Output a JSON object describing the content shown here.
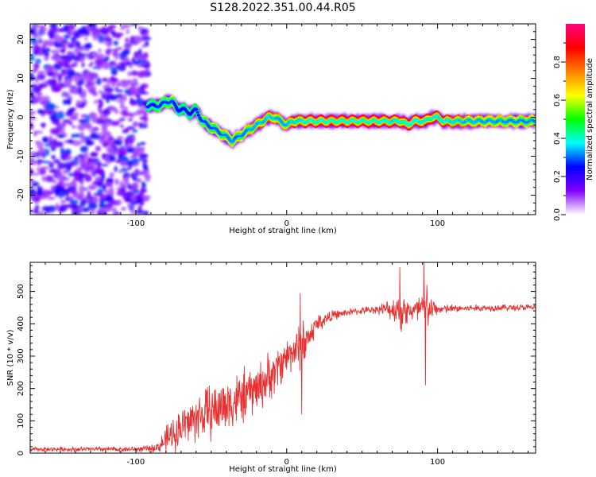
{
  "title": "S128.2022.351.00.44.R05",
  "chart_data": [
    {
      "type": "heatmap",
      "xlabel": "Height of straight line (km)",
      "ylabel": "Frequency (Hz)",
      "xlim": [
        -170,
        165
      ],
      "ylim": [
        -25,
        24
      ],
      "xticks": [
        -100,
        0,
        100
      ],
      "yticks": [
        -20,
        -10,
        0,
        10,
        20
      ],
      "colorbar": {
        "label": "Normalized spectral amplitude",
        "range": [
          0,
          1
        ],
        "ticks": [
          0.0,
          0.2,
          0.4,
          0.6,
          0.8
        ],
        "tick_labels": [
          "0.0",
          "0.2",
          "0.4",
          "0.6",
          "0.8"
        ],
        "colormap": [
          "#ffffff",
          "#8000ff",
          "#0000ff",
          "#00ffff",
          "#00ff00",
          "#ffff00",
          "#ff8000",
          "#ff0000",
          "#ff0080"
        ]
      },
      "ridge": {
        "description_x": [
          -92,
          -88,
          -84,
          -80,
          -76,
          -72,
          -68,
          -64,
          -60,
          -56,
          -52,
          -48,
          -44,
          -40,
          -36,
          -32,
          -28,
          -24,
          -20,
          -16,
          -12,
          -8,
          -4,
          0,
          4,
          8,
          12,
          20,
          40,
          60,
          70,
          76,
          80,
          84,
          88,
          92,
          96,
          100,
          104,
          110,
          130,
          150,
          165
        ],
        "frequency_hz": [
          3,
          3,
          3,
          4,
          4,
          2,
          2,
          1,
          2,
          -1,
          -2,
          -3,
          -4,
          -5,
          -6,
          -5,
          -4,
          -3,
          -2,
          -1,
          0,
          0,
          -1,
          -2,
          -1,
          -1,
          -1,
          -1,
          -1,
          -1,
          -1,
          -1,
          -2,
          -1,
          -1,
          -1,
          0,
          0,
          -1,
          -1,
          -1,
          -1,
          -1
        ],
        "amplitude": [
          0.5,
          0.5,
          0.55,
          0.55,
          0.6,
          0.45,
          0.5,
          0.5,
          0.5,
          0.55,
          0.6,
          0.6,
          0.65,
          0.7,
          0.7,
          0.65,
          0.7,
          0.75,
          0.8,
          0.8,
          0.85,
          0.8,
          0.75,
          0.8,
          0.85,
          0.85,
          0.9,
          0.95,
          0.95,
          0.95,
          0.9,
          0.9,
          0.95,
          0.9,
          0.9,
          0.9,
          0.95,
          0.9,
          0.9,
          0.85,
          0.75,
          0.7,
          0.7
        ]
      },
      "noise_region_x": [
        -170,
        -92
      ]
    },
    {
      "type": "line",
      "xlabel": "Height of straight line (km)",
      "ylabel": "SNR (10 * v/v)",
      "xlim": [
        -170,
        165
      ],
      "ylim": [
        0,
        590
      ],
      "xticks": [
        -100,
        0,
        100
      ],
      "yticks": [
        0,
        100,
        200,
        300,
        400,
        500
      ],
      "color": "#e83030",
      "envelope_x": [
        -170,
        -100,
        -90,
        -85,
        -80,
        -70,
        -60,
        -50,
        -40,
        -30,
        -20,
        -10,
        -5,
        0,
        5,
        10,
        15,
        20,
        30,
        40,
        50,
        60,
        70,
        75,
        80,
        85,
        90,
        95,
        100,
        120,
        140,
        165
      ],
      "envelope_mean": [
        12,
        12,
        14,
        20,
        40,
        80,
        110,
        130,
        150,
        170,
        200,
        240,
        270,
        300,
        320,
        330,
        360,
        400,
        425,
        435,
        440,
        445,
        445,
        445,
        440,
        440,
        440,
        445,
        445,
        448,
        450,
        450
      ],
      "envelope_amplitude": [
        6,
        8,
        10,
        15,
        40,
        60,
        70,
        80,
        80,
        80,
        70,
        70,
        60,
        60,
        50,
        80,
        40,
        30,
        15,
        10,
        10,
        12,
        30,
        60,
        40,
        30,
        80,
        40,
        15,
        10,
        10,
        10
      ],
      "spikes": [
        {
          "x": 9,
          "y": 495
        },
        {
          "x": 10,
          "y": 120
        },
        {
          "x": 11,
          "y": 410
        },
        {
          "x": 75,
          "y": 575
        },
        {
          "x": 76,
          "y": 375
        },
        {
          "x": 91,
          "y": 595
        },
        {
          "x": 92,
          "y": 210
        },
        {
          "x": 93,
          "y": 520
        }
      ]
    }
  ]
}
